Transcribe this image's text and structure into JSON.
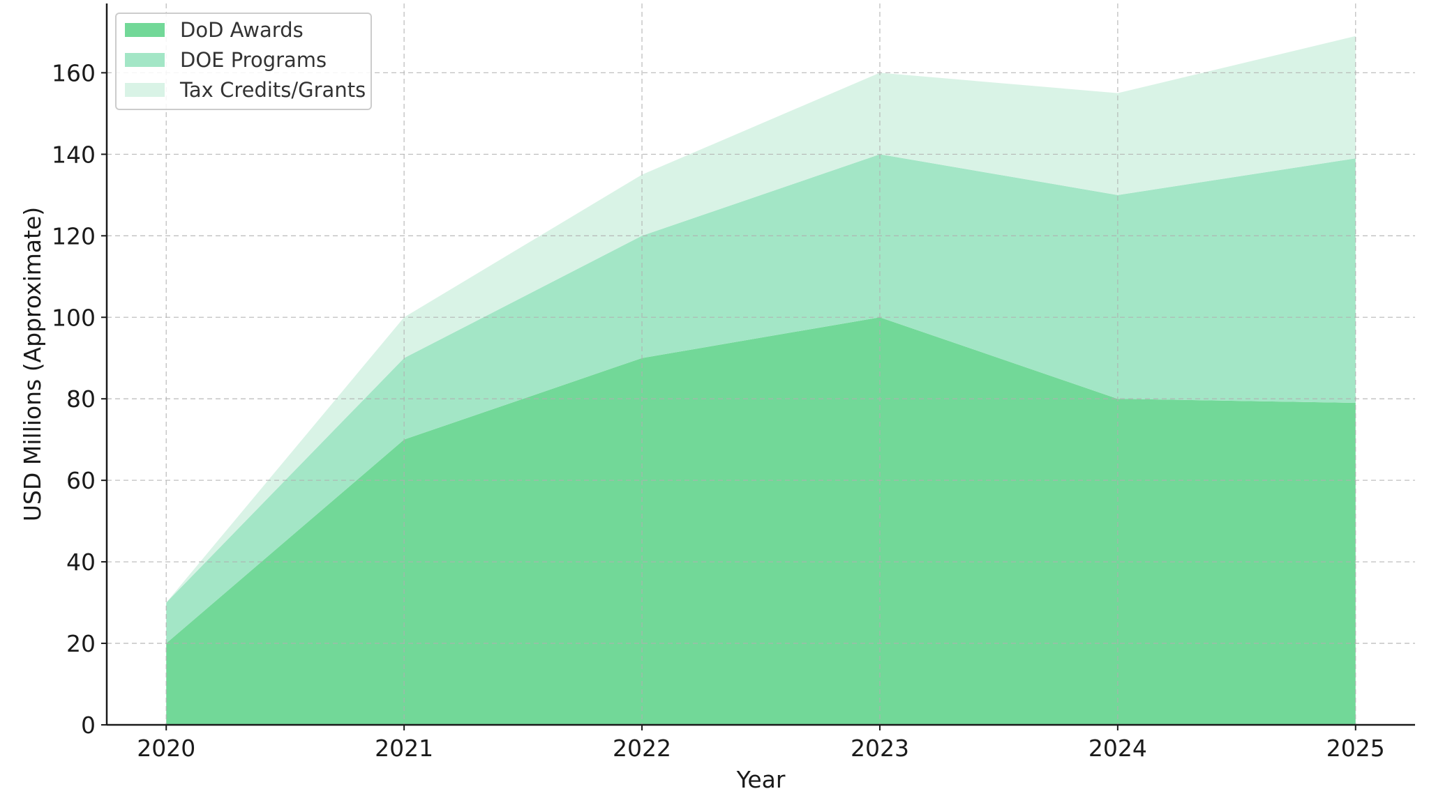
{
  "chart_data": {
    "type": "area",
    "stacked": true,
    "x": [
      2020,
      2021,
      2022,
      2023,
      2024,
      2025
    ],
    "series": [
      {
        "name": "DoD Awards",
        "values": [
          20,
          70,
          90,
          100,
          80,
          79
        ],
        "color": "#72d898"
      },
      {
        "name": "DOE Programs",
        "values": [
          10,
          20,
          30,
          40,
          50,
          60
        ],
        "color": "#a3e6c6"
      },
      {
        "name": "Tax Credits/Grants",
        "values": [
          0,
          10,
          15,
          20,
          25,
          30
        ],
        "color": "#d9f3e6"
      }
    ],
    "xlabel": "Year",
    "ylabel": "USD Millions (Approximate)",
    "xlim": [
      2019.75,
      2025.25
    ],
    "ylim": [
      0,
      177
    ],
    "yticks": [
      0,
      20,
      40,
      60,
      80,
      100,
      120,
      140,
      160
    ],
    "xticks": [
      "2020",
      "2021",
      "2022",
      "2023",
      "2024",
      "2025"
    ],
    "grid": true,
    "legend_position": "top-left"
  }
}
